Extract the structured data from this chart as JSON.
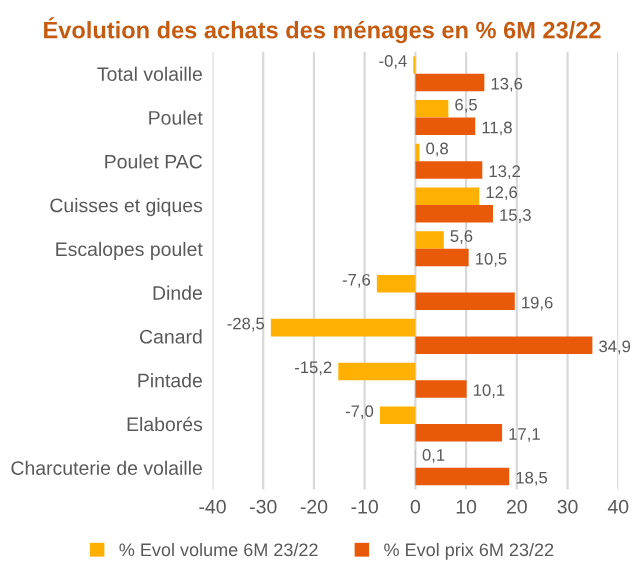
{
  "chart_data": {
    "type": "bar",
    "orientation": "horizontal",
    "title": "Évolution des achats des ménages en % 6M 23/22",
    "categories": [
      "Total volaille",
      "Poulet",
      "Poulet PAC",
      "Cuisses et giques",
      "Escalopes poulet",
      "Dinde",
      "Canard",
      "Pintade",
      "Elaborés",
      "Charcuterie de volaille"
    ],
    "series": [
      {
        "name": "% Evol volume 6M 23/22",
        "color": "#ffb000",
        "values": [
          -0.4,
          6.5,
          0.8,
          12.6,
          5.6,
          -7.6,
          -28.5,
          -15.2,
          -7.0,
          0.1
        ],
        "value_labels": [
          "-0,4",
          "6,5",
          "0,8",
          "12,6",
          "5,6",
          "-7,6",
          "-28,5",
          "-15,2",
          "-7,0",
          "0,1"
        ]
      },
      {
        "name": "% Evol prix 6M 23/22",
        "color": "#e85a0a",
        "values": [
          13.6,
          11.8,
          13.2,
          15.3,
          10.5,
          19.6,
          34.9,
          10.1,
          17.1,
          18.5
        ],
        "value_labels": [
          "13,6",
          "11,8",
          "13,2",
          "15,3",
          "10,5",
          "19,6",
          "34,9",
          "10,1",
          "17,1",
          "18,5"
        ]
      }
    ],
    "xlim": [
      -40,
      40
    ],
    "xticks": [
      -40,
      -30,
      -20,
      -10,
      0,
      10,
      20,
      30,
      40
    ],
    "grid": "x",
    "legend": "bottom"
  }
}
